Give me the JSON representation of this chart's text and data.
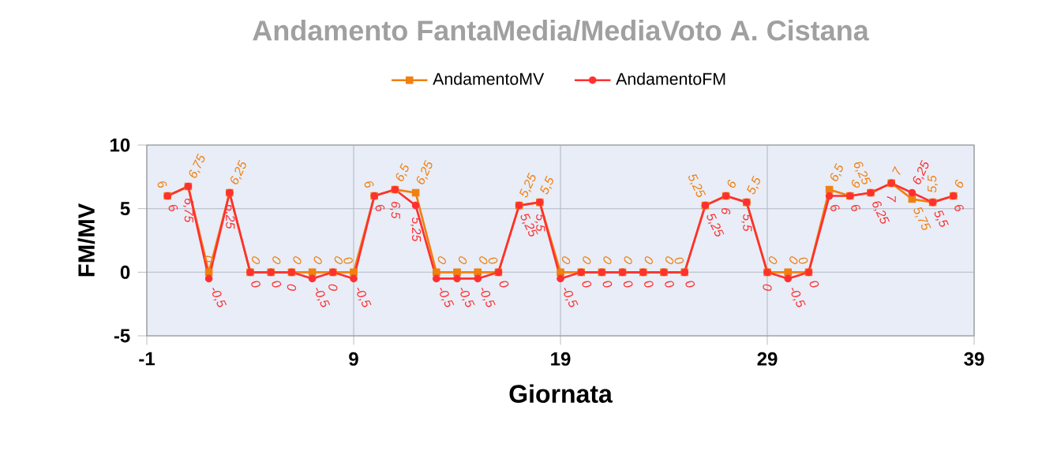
{
  "chart_data": {
    "type": "line",
    "title": "Andamento FantaMedia/MediaVoto A. Cistana",
    "xlabel": "Giornata",
    "ylabel": "FM/MV",
    "x": [
      0,
      1,
      2,
      3,
      4,
      5,
      6,
      7,
      8,
      9,
      10,
      11,
      12,
      13,
      14,
      15,
      16,
      17,
      18,
      19,
      20,
      21,
      22,
      23,
      24,
      25,
      26,
      27,
      28,
      29,
      30,
      31,
      32,
      33,
      34,
      35,
      36,
      37,
      38
    ],
    "series": [
      {
        "name": "AndamentoMV",
        "color": "#f08010",
        "marker": "square",
        "values": [
          6,
          6.75,
          0,
          6.25,
          0,
          0,
          0,
          0,
          0,
          0,
          6,
          6.5,
          6.25,
          0,
          0,
          0,
          0,
          5.25,
          5.5,
          0,
          0,
          0,
          0,
          0,
          0,
          0,
          5.25,
          6,
          5.5,
          0,
          0,
          0,
          6.5,
          6,
          6.25,
          7,
          5.75,
          5.5,
          6
        ],
        "value_labels": [
          "6",
          "6,75",
          "0",
          "6,25",
          "0",
          "0",
          "0",
          "0",
          "0",
          "0",
          "6",
          "6,5",
          "6,25",
          "0",
          "0",
          "0",
          "0",
          "5,25",
          "5,5",
          "0",
          "0",
          "0",
          "0",
          "0",
          "0",
          "0",
          "5,25",
          "6",
          "5,5",
          "0",
          "0",
          "0",
          "6,5",
          "6",
          "6,25",
          "7",
          "5,75",
          "5,5",
          "6"
        ]
      },
      {
        "name": "AndamentoFM",
        "color": "#ff3030",
        "marker": "circle",
        "values": [
          6,
          6.75,
          -0.5,
          6.25,
          0,
          0,
          0,
          -0.5,
          0,
          -0.5,
          6,
          6.5,
          5.25,
          -0.5,
          -0.5,
          -0.5,
          0,
          5.25,
          5.5,
          -0.5,
          0,
          0,
          0,
          0,
          0,
          0,
          5.25,
          6,
          5.5,
          0,
          -0.5,
          0,
          6,
          6,
          6.25,
          7,
          6.25,
          5.5,
          6
        ],
        "value_labels": [
          "6",
          "6,75",
          "-0,5",
          "6,25",
          "0",
          "0",
          "0",
          "-0,5",
          "0",
          "-0,5",
          "6",
          "6,5",
          "5,25",
          "-0,5",
          "-0,5",
          "-0,5",
          "0",
          "5,25",
          "5,5",
          "-0,5",
          "0",
          "0",
          "0",
          "0",
          "0",
          "0",
          "5,25",
          "6",
          "5,5",
          "0",
          "-0,5",
          "0",
          "6",
          "6",
          "6,25",
          "7",
          "6,25",
          "5,5",
          "6"
        ]
      }
    ],
    "xlim": [
      -1,
      39
    ],
    "xticks": [
      -1,
      9,
      19,
      29,
      39
    ],
    "ylim": [
      -5,
      10
    ],
    "yticks": [
      -5,
      0,
      5,
      10
    ],
    "grid": true,
    "legend": "top",
    "line_style": "solid"
  }
}
